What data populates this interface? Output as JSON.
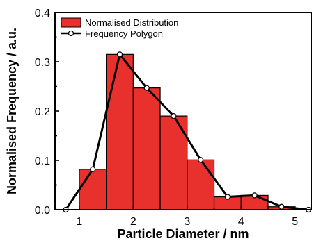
{
  "chart_data": {
    "type": "bar",
    "xlabel": "Particle Diameter / nm",
    "ylabel": "Normalised Frequency / a.u.",
    "xlim": [
      0.55,
      5.3
    ],
    "ylim": [
      0,
      0.4
    ],
    "xticks": [
      1,
      2,
      3,
      4,
      5
    ],
    "yticks": [
      0.0,
      0.1,
      0.2,
      0.3,
      0.4
    ],
    "xtick_labels": [
      "1",
      "2",
      "3",
      "4",
      "5"
    ],
    "ytick_labels": [
      "0.0",
      "0.1",
      "0.2",
      "0.3",
      "0.4"
    ],
    "legend_position": "top-left",
    "grid": false,
    "histogram": {
      "name": "Normalised Distribution",
      "color": "#e8302c",
      "bin_edges": [
        1.0,
        1.5,
        2.0,
        2.5,
        3.0,
        3.5,
        4.0,
        4.5,
        5.0
      ],
      "values": [
        0.082,
        0.315,
        0.247,
        0.19,
        0.101,
        0.026,
        0.029,
        0.006
      ]
    },
    "polygon": {
      "name": "Frequency Polygon",
      "x": [
        0.75,
        1.25,
        1.75,
        2.25,
        2.75,
        3.25,
        3.75,
        4.25,
        4.75,
        5.25
      ],
      "y": [
        0.0,
        0.082,
        0.315,
        0.247,
        0.19,
        0.101,
        0.026,
        0.029,
        0.006,
        0.0
      ]
    }
  }
}
